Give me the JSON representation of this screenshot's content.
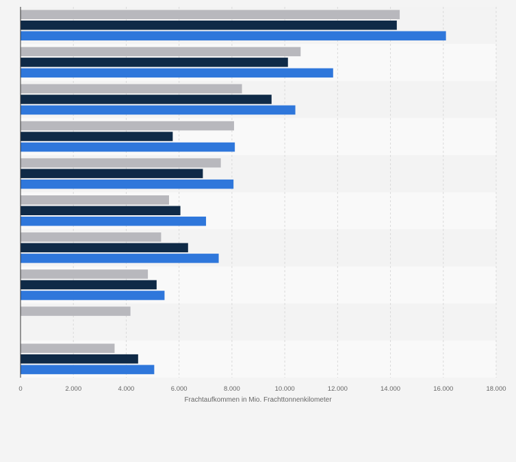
{
  "chart_data": {
    "type": "bar",
    "orientation": "horizontal",
    "categories": [
      "",
      "",
      "",
      "",
      "",
      "",
      "",
      "",
      "",
      ""
    ],
    "series": [
      {
        "color": "#b8b8bd",
        "values": [
          14350,
          10600,
          8380,
          8080,
          7580,
          5620,
          5320,
          4820,
          4160,
          3560
        ]
      },
      {
        "color": "#0f2a47",
        "values": [
          14240,
          10120,
          9500,
          5760,
          6900,
          6050,
          6340,
          5150,
          null,
          4450
        ]
      },
      {
        "color": "#2f77db",
        "values": [
          16100,
          11830,
          10400,
          8110,
          8060,
          7020,
          7500,
          5450,
          null,
          5060
        ]
      }
    ],
    "xlabel": "Frachtaufkommen in Mio. Frachttonnenkilometer",
    "ylabel": "",
    "xlim": [
      0,
      18000
    ],
    "xticks": [
      "0",
      "2.000",
      "4.000",
      "6.000",
      "8.000",
      "10.000",
      "12.000",
      "14.000",
      "16.000",
      "18.000"
    ],
    "grid": true,
    "legend": "none"
  }
}
